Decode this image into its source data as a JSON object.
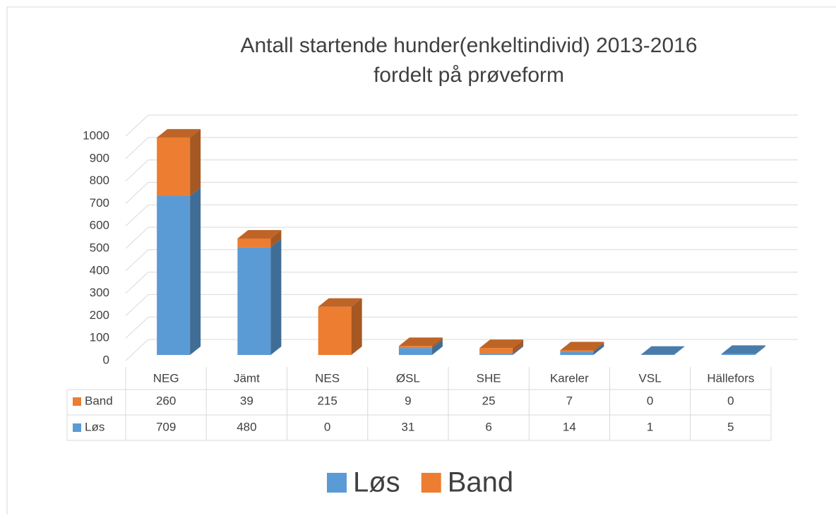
{
  "chart_data": {
    "type": "bar3d_stacked",
    "title": [
      "Antall startende hunder(enkeltindivid)  2013-2016",
      "fordelt på prøveform"
    ],
    "categories": [
      "NEG",
      "Jämt",
      "NES",
      "ØSL",
      "SHE",
      "Kareler",
      "VSL",
      "Hällefors"
    ],
    "series": [
      {
        "name": "Løs",
        "color": "#5b9bd5",
        "values": [
          709,
          480,
          0,
          31,
          6,
          14,
          1,
          5
        ]
      },
      {
        "name": "Band",
        "color": "#ed7d31",
        "values": [
          260,
          39,
          215,
          9,
          25,
          7,
          0,
          0
        ]
      }
    ],
    "ylim": [
      0,
      1000
    ],
    "yticks": [
      0,
      100,
      200,
      300,
      400,
      500,
      600,
      700,
      800,
      900,
      1000
    ],
    "grid": true,
    "legend": "bottom",
    "data_table": true
  }
}
